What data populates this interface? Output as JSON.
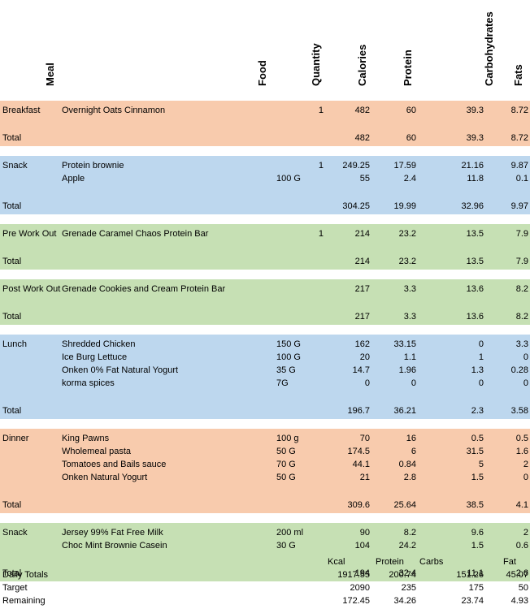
{
  "headers": {
    "meal": "Meal",
    "food": "Food",
    "quantity": "Quantity",
    "calories": "Calories",
    "protein": "Protein",
    "carbohydrates": "Carbohydrates",
    "fats": "Fats"
  },
  "colors": {
    "orange": "#f8cbad",
    "blue": "#bdd7ee",
    "green": "#c6e0b4"
  },
  "meals": [
    {
      "color": "orange",
      "items": [
        {
          "meal": "Breakfast",
          "food": "Overnight Oats Cinnamon",
          "unit": "",
          "qty": "1",
          "cal": "482",
          "pro": "60",
          "carb": "39.3",
          "fat": "8.72"
        }
      ],
      "total": {
        "label": "Total",
        "cal": "482",
        "pro": "60",
        "carb": "39.3",
        "fat": "8.72"
      }
    },
    {
      "color": "blue",
      "items": [
        {
          "meal": "Snack",
          "food": "Protein brownie",
          "unit": "",
          "qty": "1",
          "cal": "249.25",
          "pro": "17.59",
          "carb": "21.16",
          "fat": "9.87"
        },
        {
          "meal": "",
          "food": "Apple",
          "unit": "100 G",
          "qty": "",
          "cal": "55",
          "pro": "2.4",
          "carb": "11.8",
          "fat": "0.1"
        }
      ],
      "total": {
        "label": "Total",
        "cal": "304.25",
        "pro": "19.99",
        "carb": "32.96",
        "fat": "9.97"
      }
    },
    {
      "color": "green",
      "items": [
        {
          "meal": "Pre Work Out",
          "food": "Grenade Caramel Chaos Protein Bar",
          "unit": "",
          "qty": "1",
          "cal": "214",
          "pro": "23.2",
          "carb": "13.5",
          "fat": "7.9"
        }
      ],
      "total": {
        "label": "Total",
        "cal": "214",
        "pro": "23.2",
        "carb": "13.5",
        "fat": "7.9"
      }
    },
    {
      "color": "green",
      "items": [
        {
          "meal": "Post Work Out",
          "food": "Grenade Cookies and Cream Protein Bar",
          "unit": "",
          "qty": "",
          "cal": "217",
          "pro": "3.3",
          "carb": "13.6",
          "fat": "8.2"
        }
      ],
      "total": {
        "label": "Total",
        "cal": "217",
        "pro": "3.3",
        "carb": "13.6",
        "fat": "8.2"
      }
    },
    {
      "color": "blue",
      "items": [
        {
          "meal": "Lunch",
          "food": "Shredded Chicken",
          "unit": "150 G",
          "qty": "",
          "cal": "162",
          "pro": "33.15",
          "carb": "0",
          "fat": "3.3"
        },
        {
          "meal": "",
          "food": "Ice Burg Lettuce",
          "unit": "100 G",
          "qty": "",
          "cal": "20",
          "pro": "1.1",
          "carb": "1",
          "fat": "0"
        },
        {
          "meal": "",
          "food": "Onken 0% Fat Natural Yogurt",
          "unit": "35 G",
          "qty": "",
          "cal": "14.7",
          "pro": "1.96",
          "carb": "1.3",
          "fat": "0.28"
        },
        {
          "meal": "",
          "food": "korma spices",
          "unit": "7G",
          "qty": "",
          "cal": "0",
          "pro": "0",
          "carb": "0",
          "fat": "0"
        }
      ],
      "total": {
        "label": "Total",
        "cal": "196.7",
        "pro": "36.21",
        "carb": "2.3",
        "fat": "3.58"
      }
    },
    {
      "color": "orange",
      "items": [
        {
          "meal": "Dinner",
          "food": "King Pawns",
          "unit": "100 g",
          "qty": "",
          "cal": "70",
          "pro": "16",
          "carb": "0.5",
          "fat": "0.5"
        },
        {
          "meal": "",
          "food": "Wholemeal pasta",
          "unit": "50 G",
          "qty": "",
          "cal": "174.5",
          "pro": "6",
          "carb": "31.5",
          "fat": "1.6"
        },
        {
          "meal": "",
          "food": "Tomatoes and Bails sauce",
          "unit": "70 G",
          "qty": "",
          "cal": "44.1",
          "pro": "0.84",
          "carb": "5",
          "fat": "2"
        },
        {
          "meal": "",
          "food": "Onken Natural Yogurt",
          "unit": "50 G",
          "qty": "",
          "cal": "21",
          "pro": "2.8",
          "carb": "1.5",
          "fat": "0"
        }
      ],
      "total": {
        "label": "Total",
        "cal": "309.6",
        "pro": "25.64",
        "carb": "38.5",
        "fat": "4.1"
      }
    },
    {
      "color": "green",
      "items": [
        {
          "meal": "Snack",
          "food": "Jersey 99% Fat Free Milk",
          "unit": "200 ml",
          "qty": "",
          "cal": "90",
          "pro": "8.2",
          "carb": "9.6",
          "fat": "2"
        },
        {
          "meal": "",
          "food": "Choc Mint Brownie Casein",
          "unit": "30 G",
          "qty": "",
          "cal": "104",
          "pro": "24.2",
          "carb": "1.5",
          "fat": "0.6"
        }
      ],
      "total": {
        "label": "Total",
        "cal": "194",
        "pro": "32.4",
        "carb": "11.1",
        "fat": "2.6"
      }
    }
  ],
  "summary": {
    "labels": {
      "kcal": "Kcal",
      "protein": "Protein",
      "carbs": "Carbs",
      "fat": "Fat"
    },
    "rows": [
      {
        "label": "Daily Totals",
        "cal": "1917.55",
        "pro": "200.74",
        "carb": "151.26",
        "fat": "45.07"
      },
      {
        "label": "Target",
        "cal": "2090",
        "pro": "235",
        "carb": "175",
        "fat": "50"
      },
      {
        "label": "Remaining",
        "cal": "172.45",
        "pro": "34.26",
        "carb": "23.74",
        "fat": "4.93"
      }
    ]
  }
}
